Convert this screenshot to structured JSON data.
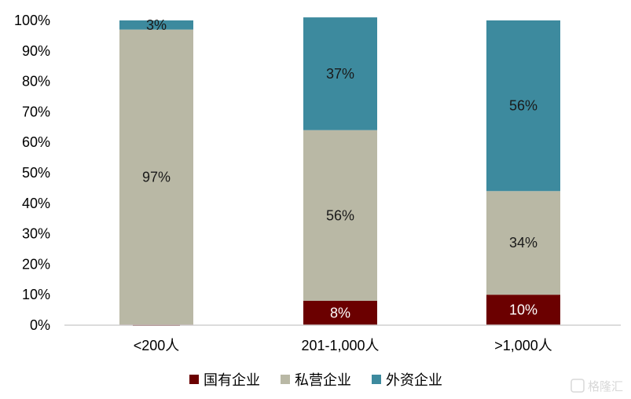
{
  "chart_data": {
    "type": "bar",
    "stacked": true,
    "categories": [
      "<200人",
      "201-1,000人",
      ">1,000人"
    ],
    "series": [
      {
        "name": "国有企业",
        "color": "#6b0000",
        "values": [
          0.2,
          8,
          10
        ],
        "labels": [
          "0.2%",
          "8%",
          "10%"
        ]
      },
      {
        "name": "私营企业",
        "color": "#b9b8a5",
        "values": [
          97,
          56,
          34
        ],
        "labels": [
          "97%",
          "56%",
          "34%"
        ]
      },
      {
        "name": "外资企业",
        "color": "#3d8a9e",
        "values": [
          3,
          37,
          56
        ],
        "labels": [
          "3%",
          "37%",
          "56%"
        ]
      }
    ],
    "plot_totals": [
      100.2,
      100,
      100
    ],
    "ylim": [
      0,
      100
    ],
    "yticks": [
      "0%",
      "10%",
      "20%",
      "30%",
      "40%",
      "50%",
      "60%",
      "70%",
      "80%",
      "90%",
      "100%"
    ],
    "legend_position": "bottom",
    "grid": false
  },
  "watermark": {
    "text": "格隆汇"
  }
}
